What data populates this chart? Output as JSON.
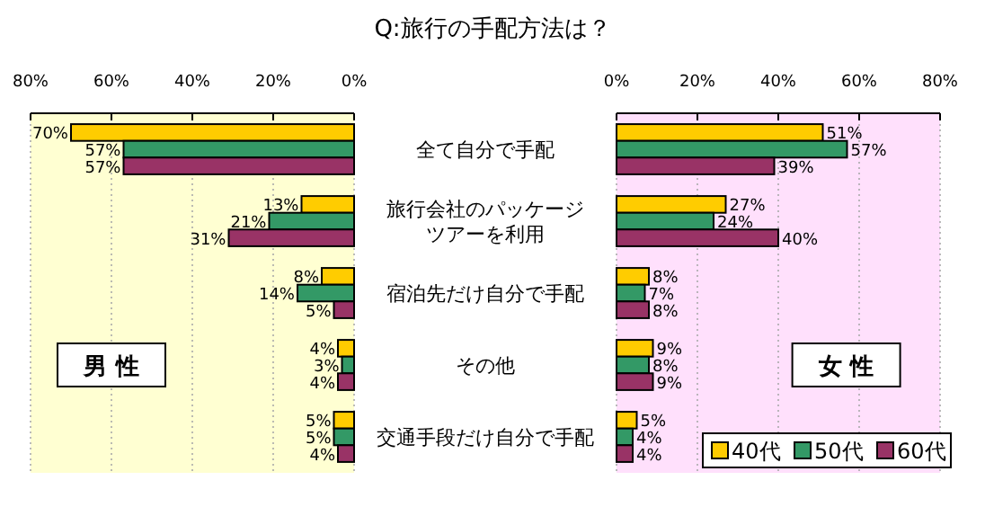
{
  "chart_data": [
    {
      "type": "bar",
      "orientation": "horizontal",
      "title": "Q:旅行の手配方法は？",
      "categories": [
        "全て自分で手配",
        "旅行会社のパッケージツアーを利用",
        "宿泊先だけ自分で手配",
        "その他",
        "交通手段だけ自分で手配"
      ],
      "xlim": [
        80,
        0
      ],
      "xticks": [
        {
          "value": 80,
          "label": "80%"
        },
        {
          "value": 60,
          "label": "60%"
        },
        {
          "value": 40,
          "label": "40%"
        },
        {
          "value": 20,
          "label": "20%"
        },
        {
          "value": 0,
          "label": "0%"
        }
      ],
      "grid": "x",
      "tick_labels": "x",
      "annotations": [
        "男 性"
      ],
      "series": [
        {
          "color": "#ffcc00",
          "values": [
            70,
            13,
            8,
            4,
            5
          ],
          "value_labels": [
            "70%",
            "13%",
            "8%",
            "4%",
            "5%"
          ]
        },
        {
          "color": "#339966",
          "values": [
            57,
            21,
            14,
            3,
            5
          ],
          "value_labels": [
            "57%",
            "21%",
            "14%",
            "3%",
            "5%"
          ]
        },
        {
          "color": "#993366",
          "values": [
            57,
            31,
            5,
            4,
            4
          ],
          "value_labels": [
            "57%",
            "31%",
            "5%",
            "4%",
            "4%"
          ]
        }
      ]
    },
    {
      "type": "bar",
      "orientation": "horizontal",
      "categories": [
        "全て自分で手配",
        "旅行会社のパッケージツアーを利用",
        "宿泊先だけ自分で手配",
        "その他",
        "交通手段だけ自分で手配"
      ],
      "xlim": [
        0,
        80
      ],
      "xticks": [
        {
          "value": 0,
          "label": "0%"
        },
        {
          "value": 20,
          "label": "20%"
        },
        {
          "value": 40,
          "label": "40%"
        },
        {
          "value": 60,
          "label": "60%"
        },
        {
          "value": 80,
          "label": "80%"
        }
      ],
      "grid": "x",
      "legend": "bottom right",
      "annotations": [
        "女 性"
      ],
      "series": [
        {
          "name": "40代",
          "color": "#ffcc00",
          "values": [
            51,
            27,
            8,
            9,
            5
          ],
          "value_labels": [
            "51%",
            "27%",
            "8%",
            "9%",
            "5%"
          ]
        },
        {
          "name": "50代",
          "color": "#339966",
          "values": [
            57,
            24,
            7,
            8,
            4
          ],
          "value_labels": [
            "57%",
            "24%",
            "7%",
            "8%",
            "4%"
          ]
        },
        {
          "name": "60代",
          "color": "#993366",
          "values": [
            39,
            40,
            8,
            9,
            4
          ],
          "value_labels": [
            "39%",
            "40%",
            "8%",
            "9%",
            "4%"
          ]
        }
      ]
    }
  ]
}
